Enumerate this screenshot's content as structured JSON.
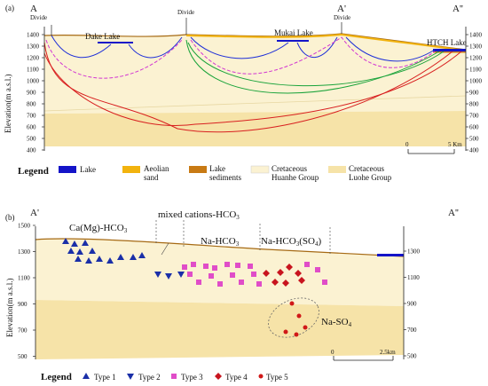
{
  "panel_a": {
    "tag": "(a)",
    "point_a": "A",
    "point_a1": "A'",
    "point_a2": "A''",
    "divides": [
      "Divide",
      "Divide",
      "Divide"
    ],
    "lakes": [
      "Dake Lake",
      "Mukai Lake",
      "HTCH Lake"
    ],
    "ylabel": "Elevation(m a.s.l.)",
    "yticks_left": [
      "1400",
      "1300",
      "1200",
      "1100",
      "1000",
      "900",
      "800",
      "700",
      "600",
      "500",
      "400"
    ],
    "yticks_right": [
      "1400",
      "1300",
      "1200",
      "1100",
      "1000",
      "900",
      "800",
      "700",
      "600",
      "500",
      "400"
    ],
    "scale_start": "0",
    "scale_end": "5 Km",
    "legend": {
      "title": "Legend",
      "items": [
        {
          "label": "Lake",
          "color": "#1414c8"
        },
        {
          "label": "Aeolian sand",
          "color": "#f2b30e"
        },
        {
          "label": "Lake sediments",
          "color": "#c87a14"
        },
        {
          "label": "Cretaceous Huanhe Group",
          "color": "#fbf2d2"
        },
        {
          "label": "Cretaceous Luohe Group",
          "color": "#f6e3a8"
        }
      ]
    }
  },
  "panel_b": {
    "tag": "(b)",
    "point_a1": "A'",
    "point_a2": "A''",
    "zones": {
      "ca": "Ca(Mg)-HCO",
      "mixed": "mixed cations-HCO",
      "na": "Na-HCO",
      "na_so4": "Na-HCO",
      "na_so4_tail": "(SO",
      "na_so4_close": ")",
      "naso4_circle": "Na-SO",
      "sub3": "3",
      "sub4": "4"
    },
    "ylabel": "Elevation(m a.s.l.)",
    "yticks_left": [
      "1500",
      "1300",
      "1100",
      "900",
      "700",
      "500"
    ],
    "yticks_right": [
      "1300",
      "1100",
      "900",
      "700",
      "500"
    ],
    "scale_start": "0",
    "scale_end": "2.5km",
    "legend": {
      "title": "Legend",
      "items": [
        {
          "label": "Type 1",
          "color": "#1a2fa8",
          "marker": "triangle-up"
        },
        {
          "label": "Type 2",
          "color": "#1a2fa8",
          "marker": "triangle-down"
        },
        {
          "label": "Type 3",
          "color": "#e04dc8",
          "marker": "square"
        },
        {
          "label": "Type 4",
          "color": "#c8141e",
          "marker": "diamond"
        },
        {
          "label": "Type 5",
          "color": "#d01818",
          "marker": "circle"
        }
      ]
    }
  }
}
